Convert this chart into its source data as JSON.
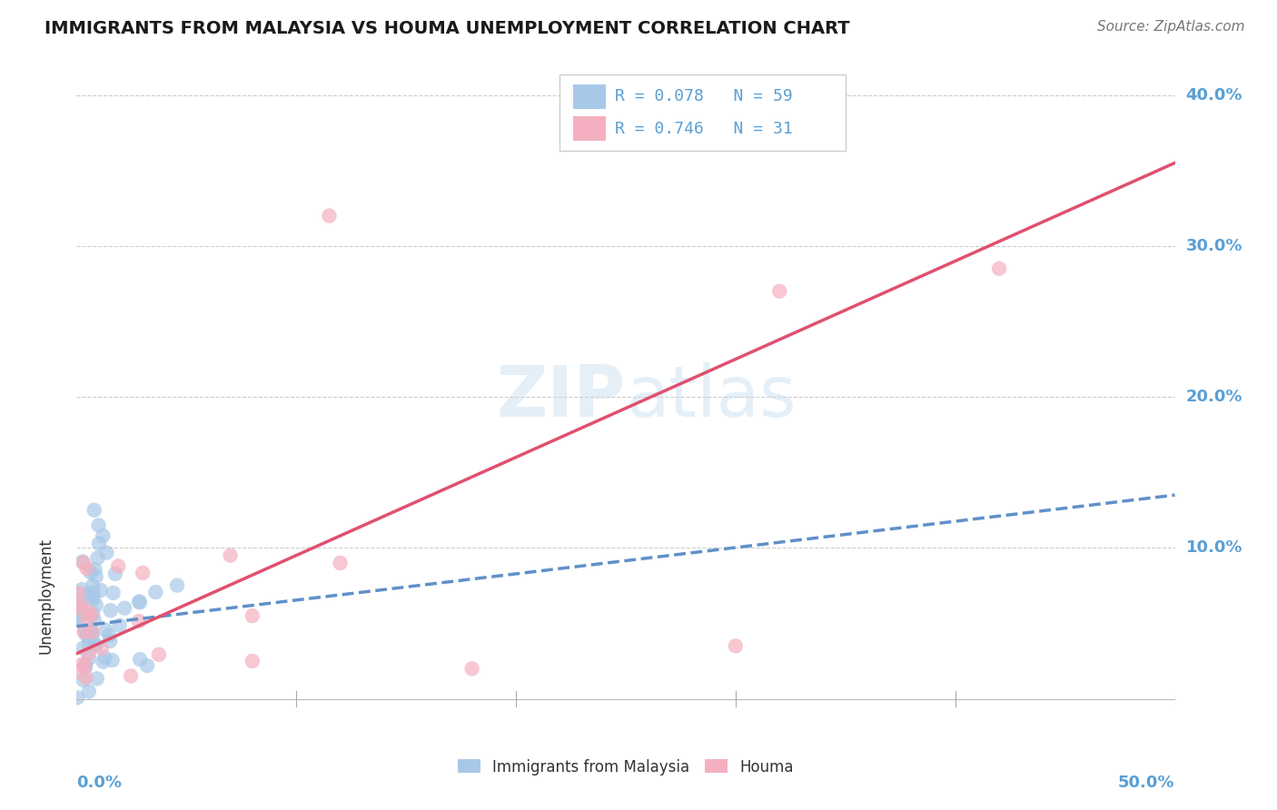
{
  "title": "IMMIGRANTS FROM MALAYSIA VS HOUMA UNEMPLOYMENT CORRELATION CHART",
  "source": "Source: ZipAtlas.com",
  "ylabel": "Unemployment",
  "watermark": "ZIPatlas",
  "blue_R": 0.078,
  "blue_N": 59,
  "pink_R": 0.746,
  "pink_N": 31,
  "blue_color": "#a8c8e8",
  "pink_color": "#f4b0c0",
  "blue_line_color": "#6090c8",
  "pink_line_color": "#e05070",
  "legend_label_blue": "Immigrants from Malaysia",
  "legend_label_pink": "Houma",
  "xmin": 0.0,
  "xmax": 0.5,
  "ymin": -0.02,
  "ymax": 0.42,
  "yticks": [
    0.0,
    0.1,
    0.2,
    0.3,
    0.4
  ],
  "ytick_labels": [
    "",
    "10.0%",
    "20.0%",
    "30.0%",
    "40.0%"
  ],
  "blue_trendline": [
    0.048,
    0.135
  ],
  "pink_trendline": [
    0.03,
    0.355
  ],
  "grid_color": "#cccccc",
  "bg_color": "#ffffff",
  "tick_label_color": "#5a9fd4"
}
